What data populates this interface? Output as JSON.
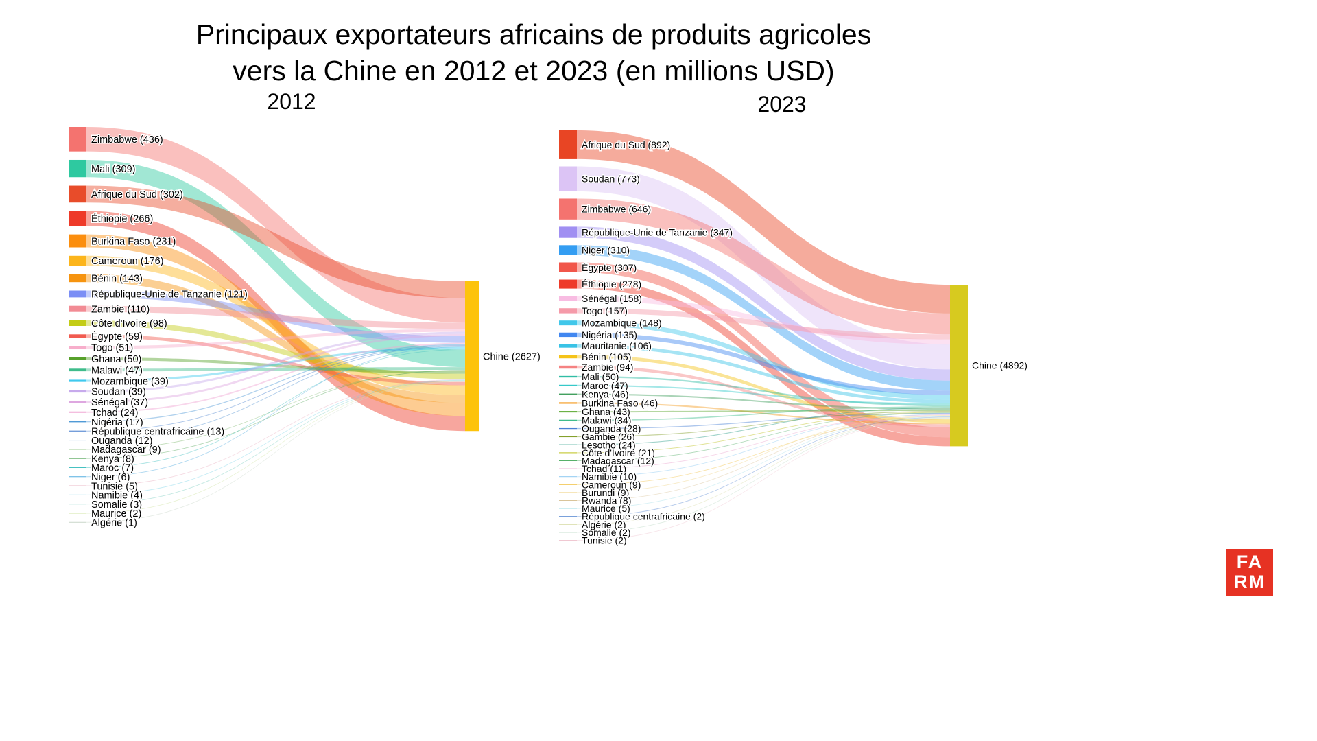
{
  "title": {
    "line1": "Principaux exportateurs africains de produits agricoles",
    "line2": "vers la Chine en 2012 et 2023 (en millions USD)"
  },
  "logo": {
    "line1": "FA",
    "line2": "RM",
    "bg": "#e63223",
    "fg": "#ffffff"
  },
  "chart_data": [
    {
      "type": "sankey",
      "year_label": "2012",
      "title": "Exportations agricoles africaines vers la Chine en 2012 (millions USD)",
      "target": {
        "name": "Chine",
        "value": 2627,
        "color": "#fdc30b"
      },
      "nodes": [
        {
          "name": "Zimbabwe",
          "value": 436,
          "color": "#f4736f"
        },
        {
          "name": "Mali",
          "value": 309,
          "color": "#2ec9a0"
        },
        {
          "name": "Afrique du Sud",
          "value": 302,
          "color": "#e84c2a"
        },
        {
          "name": "Éthiopie",
          "value": 266,
          "color": "#ee3a29"
        },
        {
          "name": "Burkina Faso",
          "value": 231,
          "color": "#fb8e0e"
        },
        {
          "name": "Cameroun",
          "value": 176,
          "color": "#fcb51b"
        },
        {
          "name": "Bénin",
          "value": 143,
          "color": "#f6940f"
        },
        {
          "name": "République-Unie de Tanzanie",
          "value": 121,
          "color": "#7b8ef5"
        },
        {
          "name": "Zambie",
          "value": 110,
          "color": "#f28b94"
        },
        {
          "name": "Côte d'Ivoire",
          "value": 98,
          "color": "#c3cc16"
        },
        {
          "name": "Égypte",
          "value": 59,
          "color": "#f15b50"
        },
        {
          "name": "Togo",
          "value": 51,
          "color": "#f7aecb"
        },
        {
          "name": "Ghana",
          "value": 50,
          "color": "#57a12b"
        },
        {
          "name": "Malawi",
          "value": 47,
          "color": "#3fbc8b"
        },
        {
          "name": "Mozambique",
          "value": 39,
          "color": "#3fc9ee"
        },
        {
          "name": "Soudan",
          "value": 39,
          "color": "#c7aaec"
        },
        {
          "name": "Sénégal",
          "value": 37,
          "color": "#dea7e0"
        },
        {
          "name": "Tchad",
          "value": 24,
          "color": "#efa3d2"
        },
        {
          "name": "Nigéria",
          "value": 17,
          "color": "#4f99d6"
        },
        {
          "name": "République centrafricaine",
          "value": 13,
          "color": "#4a80cf"
        },
        {
          "name": "Ouganda",
          "value": 12,
          "color": "#4d8fd1"
        },
        {
          "name": "Madagascar",
          "value": 9,
          "color": "#7fb96f"
        },
        {
          "name": "Kenya",
          "value": 8,
          "color": "#59a85e"
        },
        {
          "name": "Maroc",
          "value": 7,
          "color": "#3fbfbf"
        },
        {
          "name": "Niger",
          "value": 6,
          "color": "#54aee0"
        },
        {
          "name": "Tunisie",
          "value": 5,
          "color": "#e9b0c0"
        },
        {
          "name": "Namibie",
          "value": 4,
          "color": "#7fd4e8"
        },
        {
          "name": "Somalie",
          "value": 3,
          "color": "#7fcfc0"
        },
        {
          "name": "Maurice",
          "value": 2,
          "color": "#cfe3a0"
        },
        {
          "name": "Algérie",
          "value": 1,
          "color": "#c9d6c9"
        }
      ],
      "target_order": [
        "Afrique du Sud",
        "Zimbabwe",
        "Zambie",
        "Togo",
        "Soudan",
        "Sénégal",
        "République-Unie de Tanzanie",
        "Tchad",
        "Nigéria",
        "République centrafricaine",
        "Ouganda",
        "Niger",
        "Mozambique",
        "Maroc",
        "Mali",
        "Malawi",
        "Kenya",
        "Madagascar",
        "Ghana",
        "Côte d'Ivoire",
        "Tunisie",
        "Namibie",
        "Somalie",
        "Maurice",
        "Algérie",
        "Égypte",
        "Cameroun",
        "Bénin",
        "Burkina Faso",
        "Éthiopie"
      ]
    },
    {
      "type": "sankey",
      "year_label": "2023",
      "title": "Exportations agricoles africaines vers la Chine en 2023 (millions USD)",
      "target": {
        "name": "Chine",
        "value": 4892,
        "color": "#d7ca1f"
      },
      "nodes": [
        {
          "name": "Afrique du Sud",
          "value": 892,
          "color": "#e84524"
        },
        {
          "name": "Soudan",
          "value": 773,
          "color": "#dcc4f5"
        },
        {
          "name": "Zimbabwe",
          "value": 646,
          "color": "#f4736f"
        },
        {
          "name": "République-Unie de Tanzanie",
          "value": 347,
          "color": "#a08ff2"
        },
        {
          "name": "Niger",
          "value": 310,
          "color": "#339df2"
        },
        {
          "name": "Égypte",
          "value": 307,
          "color": "#f1564a"
        },
        {
          "name": "Éthiopie",
          "value": 278,
          "color": "#ee3a29"
        },
        {
          "name": "Sénégal",
          "value": 158,
          "color": "#f8bce2"
        },
        {
          "name": "Togo",
          "value": 157,
          "color": "#f59aa9"
        },
        {
          "name": "Mozambique",
          "value": 148,
          "color": "#41c7ea"
        },
        {
          "name": "Nigéria",
          "value": 135,
          "color": "#4187f0"
        },
        {
          "name": "Mauritanie",
          "value": 106,
          "color": "#39c3e6"
        },
        {
          "name": "Bénin",
          "value": 105,
          "color": "#f5c319"
        },
        {
          "name": "Zambie",
          "value": 94,
          "color": "#f58282"
        },
        {
          "name": "Mali",
          "value": 50,
          "color": "#31bda5"
        },
        {
          "name": "Maroc",
          "value": 47,
          "color": "#36c9c9"
        },
        {
          "name": "Kenya",
          "value": 46,
          "color": "#43a05f"
        },
        {
          "name": "Burkina Faso",
          "value": 46,
          "color": "#f59d24"
        },
        {
          "name": "Ghana",
          "value": 43,
          "color": "#5aa72e"
        },
        {
          "name": "Malawi",
          "value": 34,
          "color": "#3fbc8b"
        },
        {
          "name": "Ouganda",
          "value": 28,
          "color": "#4a80d4"
        },
        {
          "name": "Gambie",
          "value": 26,
          "color": "#84a02c"
        },
        {
          "name": "Lesotho",
          "value": 24,
          "color": "#31a08c"
        },
        {
          "name": "Côte d'Ivoire",
          "value": 21,
          "color": "#bcc21a"
        },
        {
          "name": "Madagascar",
          "value": 12,
          "color": "#57b06a"
        },
        {
          "name": "Tchad",
          "value": 11,
          "color": "#eba3cf"
        },
        {
          "name": "Namibie",
          "value": 10,
          "color": "#8ecaf2"
        },
        {
          "name": "Cameroun",
          "value": 9,
          "color": "#f2c34a"
        },
        {
          "name": "Burundi",
          "value": 9,
          "color": "#f0d48c"
        },
        {
          "name": "Rwanda",
          "value": 8,
          "color": "#d9c49a"
        },
        {
          "name": "Maurice",
          "value": 5,
          "color": "#aee3ea"
        },
        {
          "name": "République centrafricaine",
          "value": 2,
          "color": "#5a8ad2"
        },
        {
          "name": "Algérie",
          "value": 2,
          "color": "#d9dca8"
        },
        {
          "name": "Somalie",
          "value": 2,
          "color": "#bcd9c6"
        },
        {
          "name": "Tunisie",
          "value": 2,
          "color": "#f0c8d2"
        }
      ],
      "target_order": [
        "Afrique du Sud",
        "Zimbabwe",
        "Togo",
        "Sénégal",
        "Soudan",
        "République-Unie de Tanzanie",
        "Niger",
        "Nigéria",
        "Mozambique",
        "Mauritanie",
        "Maroc",
        "Mali",
        "Malawi",
        "Lesotho",
        "Kenya",
        "Ghana",
        "Gambie",
        "Côte d'Ivoire",
        "Madagascar",
        "Ouganda",
        "Namibie",
        "Tchad",
        "Burundi",
        "Rwanda",
        "Maurice",
        "République centrafricaine",
        "Algérie",
        "Somalie",
        "Tunisie",
        "Cameroun",
        "Bénin",
        "Burkina Faso",
        "Zambie",
        "Égypte",
        "Éthiopie"
      ]
    }
  ]
}
